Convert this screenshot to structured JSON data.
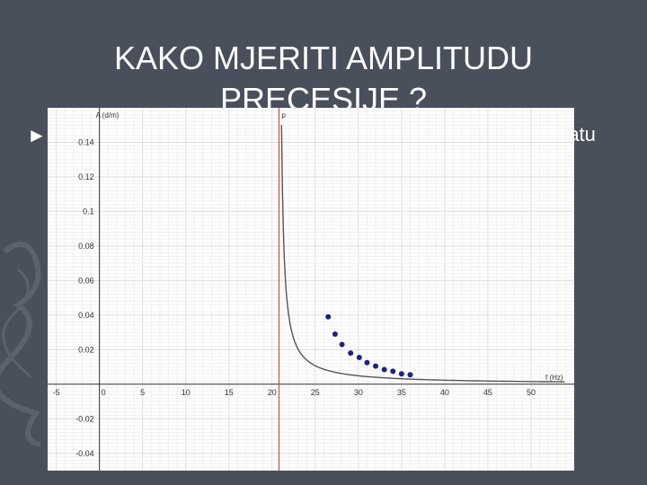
{
  "slide": {
    "title_line1": "KAKO MJERITI  AMPLITUDU",
    "title_line2": "PRECESIJE ?",
    "bullet": "►",
    "right_fragment": "ratu"
  },
  "colors": {
    "background": "#4a4f5c",
    "curve": "#555555",
    "points": "#1a237e",
    "vertical_line": "#c0392b",
    "grid": "#e4e4e4"
  },
  "chart_data": {
    "type": "scatter",
    "xlabel": "f (Hz)",
    "ylabel": "A (d/m)",
    "vertical_line_label": "p",
    "vertical_line_x": 20.8,
    "xlim": [
      -6,
      55
    ],
    "ylim": [
      -0.05,
      0.16
    ],
    "x_ticks": [
      -5,
      0,
      5,
      10,
      15,
      20,
      25,
      30,
      35,
      40,
      45,
      50
    ],
    "y_ticks": [
      -0.04,
      -0.02,
      0,
      0.02,
      0.04,
      0.06,
      0.08,
      0.1,
      0.12,
      0.14
    ],
    "y_tick_labels": [
      "-0.04",
      "-0.02",
      "0",
      "0.02",
      "0.04",
      "0.06",
      "0.08",
      "0.1",
      "0.12",
      "0.14"
    ],
    "x_tick_labels": [
      "-5",
      "0",
      "5",
      "10",
      "15",
      "20",
      "25",
      "30",
      "35",
      "40",
      "45",
      "50"
    ],
    "points": [
      {
        "x": 26.5,
        "y": 0.039
      },
      {
        "x": 27.3,
        "y": 0.029
      },
      {
        "x": 28.1,
        "y": 0.023
      },
      {
        "x": 29.1,
        "y": 0.018
      },
      {
        "x": 30.1,
        "y": 0.0155
      },
      {
        "x": 31.0,
        "y": 0.0125
      },
      {
        "x": 32.0,
        "y": 0.0105
      },
      {
        "x": 33.0,
        "y": 0.0085
      },
      {
        "x": 34.0,
        "y": 0.0075
      },
      {
        "x": 35.0,
        "y": 0.006
      },
      {
        "x": 36.0,
        "y": 0.0055
      }
    ],
    "curve": {
      "type": "hyperbolic",
      "a": 0.045,
      "x0": 20.8,
      "x_end": 54
    }
  }
}
